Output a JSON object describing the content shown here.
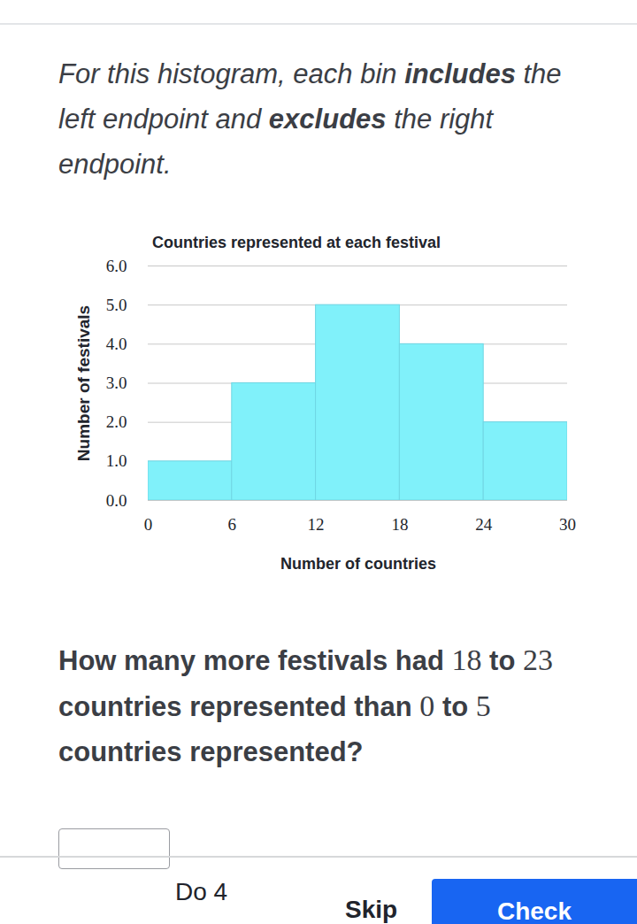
{
  "chart_data": {
    "type": "histogram",
    "title": "Countries represented at each festival",
    "xlabel": "Number of countries",
    "ylabel": "Number of festivals",
    "bins": [
      0,
      6,
      12,
      18,
      24,
      30
    ],
    "values": [
      1,
      3,
      5,
      4,
      2
    ],
    "color": "#80f1fa",
    "xlim": [
      0,
      30
    ],
    "xticks": [
      0,
      6,
      12,
      18,
      24,
      30
    ],
    "ylim": [
      0,
      6
    ],
    "yticks": [
      0,
      1,
      2,
      3,
      4,
      5,
      6
    ],
    "grid": true
  },
  "page": {
    "instructions": [
      {
        "text": "For this histogram, each bin "
      },
      {
        "text": "includes",
        "bold": true
      },
      {
        "text": " the left endpoint and "
      },
      {
        "text": "excludes",
        "bold": true
      },
      {
        "text": " the right endpoint."
      }
    ],
    "question": [
      {
        "text": "How many more festivals had "
      },
      {
        "text": "18",
        "math": true
      },
      {
        "text": " to "
      },
      {
        "text": "23",
        "math": true
      },
      {
        "text": " countries represented than "
      },
      {
        "text": "0",
        "math": true
      },
      {
        "text": " to "
      },
      {
        "text": "5",
        "math": true
      },
      {
        "text": " countries represented?"
      }
    ],
    "buttons": {
      "secondary": "Do 4",
      "skip": "Skip",
      "check": "Check"
    }
  }
}
